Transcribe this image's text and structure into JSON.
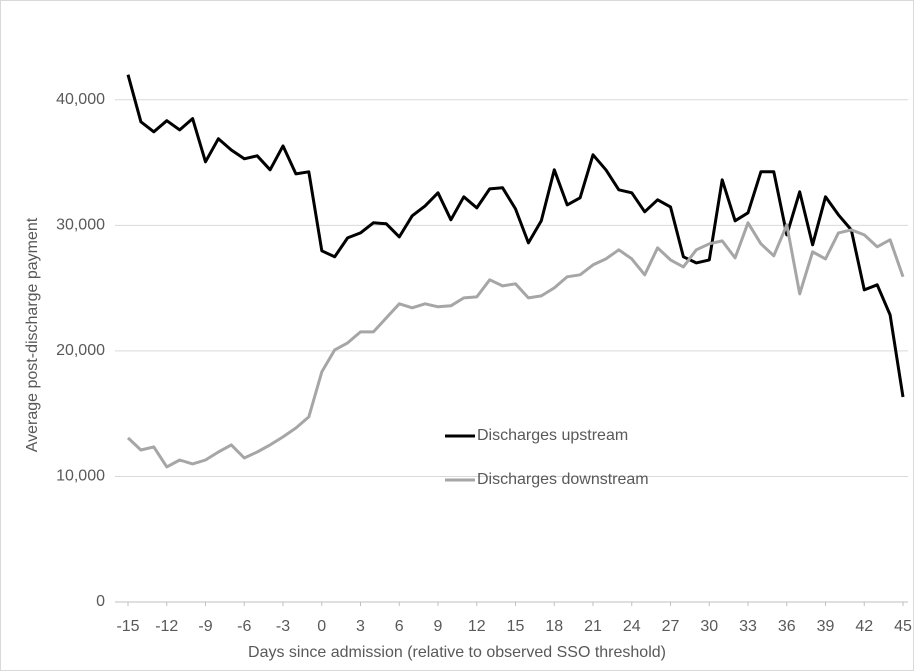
{
  "chart_data": {
    "type": "line",
    "x_label": "Days since admission (relative to observed SSO threshold)",
    "y_label": "Average post-discharge payment",
    "x": [
      -15,
      -14,
      -13,
      -12,
      -11,
      -10,
      -9,
      -8,
      -7,
      -6,
      -5,
      -4,
      -3,
      -2,
      -1,
      0,
      1,
      2,
      3,
      4,
      5,
      6,
      7,
      8,
      9,
      10,
      11,
      12,
      13,
      14,
      15,
      16,
      17,
      18,
      19,
      20,
      21,
      22,
      23,
      24,
      25,
      26,
      27,
      28,
      29,
      30,
      31,
      32,
      33,
      34,
      35,
      36,
      37,
      38,
      39,
      40,
      41,
      42,
      43,
      44,
      45
    ],
    "series": [
      {
        "name": "Discharges upstream",
        "color": "#000000",
        "values": [
          42000,
          38250,
          37450,
          38330,
          37600,
          38500,
          35060,
          36900,
          36000,
          35300,
          35540,
          34420,
          36330,
          34100,
          34260,
          27970,
          27490,
          29000,
          29400,
          30200,
          30120,
          29080,
          30760,
          31550,
          32590,
          30440,
          32270,
          31390,
          32900,
          32990,
          31310,
          28600,
          30360,
          34420,
          31630,
          32190,
          35620,
          34420,
          32830,
          32590,
          31080,
          32030,
          31470,
          27490,
          27010,
          27250,
          33630,
          30360,
          31000,
          34260,
          34260,
          29240,
          32670,
          28450,
          32270,
          30840,
          29640,
          24860,
          25260,
          22870,
          16330
        ]
      },
      {
        "name": "Discharges downstream",
        "color": "#a6a6a6",
        "values": [
          13070,
          12110,
          12350,
          10760,
          11310,
          11000,
          11310,
          11950,
          12510,
          11470,
          11950,
          12510,
          13150,
          13860,
          14740,
          18330,
          20080,
          20640,
          21510,
          21510,
          22630,
          23750,
          23430,
          23750,
          23510,
          23590,
          24220,
          24300,
          25660,
          25180,
          25340,
          24220,
          24380,
          25020,
          25900,
          26060,
          26850,
          27330,
          28050,
          27330,
          26060,
          28210,
          27250,
          26690,
          28050,
          28530,
          28760,
          27410,
          30200,
          28530,
          27570,
          30040,
          24540,
          27890,
          27330,
          29400,
          29640,
          29240,
          28290,
          28850,
          25900
        ]
      }
    ],
    "xlim": [
      -15,
      45
    ],
    "xticks": [
      -15,
      -12,
      -9,
      -6,
      -3,
      0,
      3,
      6,
      9,
      12,
      15,
      18,
      21,
      24,
      27,
      30,
      33,
      36,
      39,
      42,
      45
    ],
    "ylim": [
      0,
      45000
    ],
    "yticks": [
      0,
      {
        "value": 10000,
        "label": "10,000"
      },
      {
        "value": 20000,
        "label": "20,000"
      },
      {
        "value": 30000,
        "label": "30,000"
      },
      {
        "value": 40000,
        "label": "40,000"
      }
    ],
    "grid": true
  }
}
